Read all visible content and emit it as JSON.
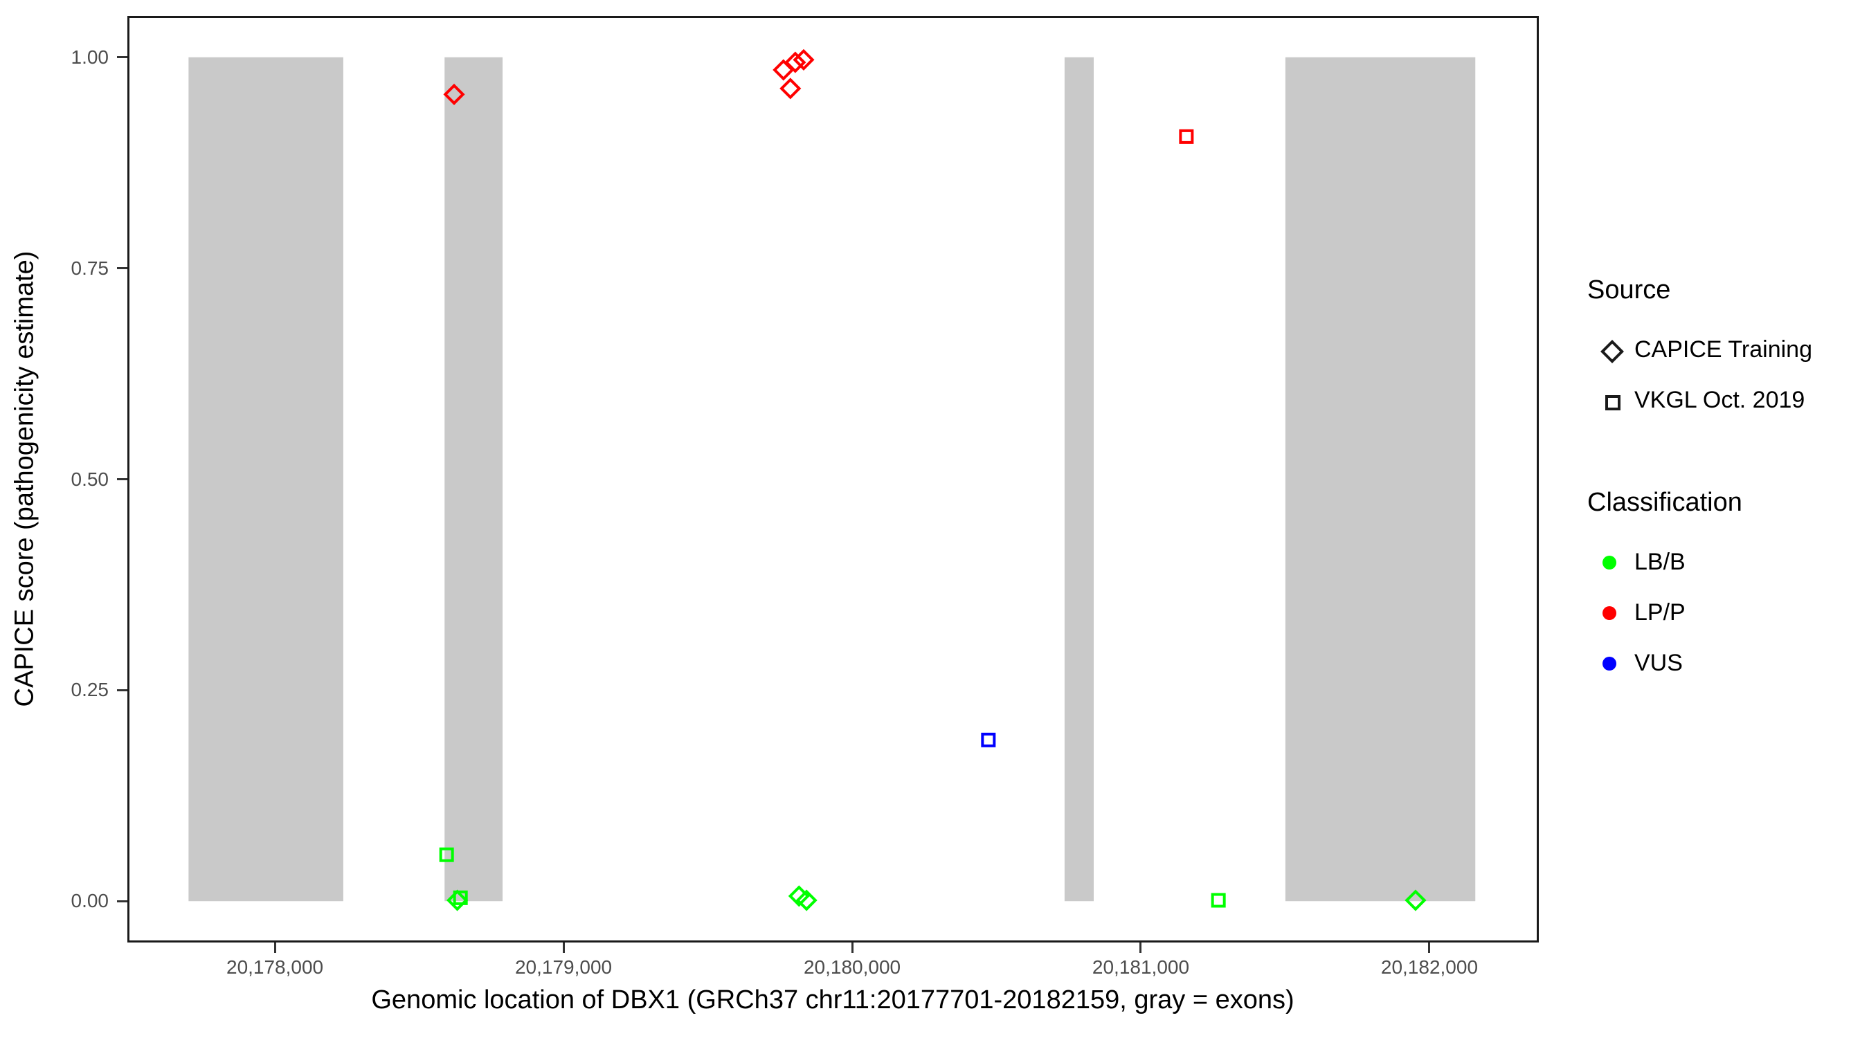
{
  "chart_data": {
    "type": "scatter",
    "title": "",
    "xlabel": "Genomic location of DBX1 (GRCh37 chr11:20177701-20182159, gray = exons)",
    "ylabel": "CAPICE score (pathogenicity estimate)",
    "xlim": [
      20177489,
      20182379
    ],
    "ylim": [
      -0.049,
      1.049
    ],
    "grid": false,
    "legend_position": "right",
    "x_ticks": [
      {
        "value": 20178000,
        "label": "20,178,000"
      },
      {
        "value": 20179000,
        "label": "20,179,000"
      },
      {
        "value": 20180000,
        "label": "20,180,000"
      },
      {
        "value": 20181000,
        "label": "20,181,000"
      },
      {
        "value": 20182000,
        "label": "20,182,000"
      }
    ],
    "y_ticks": [
      {
        "value": 0.0,
        "label": "0.00"
      },
      {
        "value": 0.25,
        "label": "0.25"
      },
      {
        "value": 0.5,
        "label": "0.50"
      },
      {
        "value": 0.75,
        "label": "0.75"
      },
      {
        "value": 1.0,
        "label": "1.00"
      }
    ],
    "exon_color": "#C9C9C9",
    "exons": [
      {
        "start": 20177701,
        "end": 20178237
      },
      {
        "start": 20178588,
        "end": 20178789
      },
      {
        "start": 20180736,
        "end": 20180837
      },
      {
        "start": 20181501,
        "end": 20182159
      }
    ],
    "classification_colors": {
      "LB/B": "#00FF00",
      "LP/P": "#FF0000",
      "VUS": "#0000FF"
    },
    "marker_by_source": {
      "CAPICE Training": "diamond",
      "VKGL Oct. 2019": "square"
    },
    "points": [
      {
        "position": 20178621,
        "score": 0.956,
        "classification": "LP/P",
        "source": "CAPICE Training"
      },
      {
        "position": 20179762,
        "score": 0.985,
        "classification": "LP/P",
        "source": "CAPICE Training"
      },
      {
        "position": 20179786,
        "score": 0.963,
        "classification": "LP/P",
        "source": "CAPICE Training"
      },
      {
        "position": 20179803,
        "score": 0.994,
        "classification": "LP/P",
        "source": "CAPICE Training"
      },
      {
        "position": 20179832,
        "score": 0.997,
        "classification": "LP/P",
        "source": "CAPICE Training"
      },
      {
        "position": 20178632,
        "score": 0.001,
        "classification": "LB/B",
        "source": "CAPICE Training"
      },
      {
        "position": 20179816,
        "score": 0.006,
        "classification": "LB/B",
        "source": "CAPICE Training"
      },
      {
        "position": 20179842,
        "score": 0.001,
        "classification": "LB/B",
        "source": "CAPICE Training"
      },
      {
        "position": 20181952,
        "score": 0.001,
        "classification": "LB/B",
        "source": "CAPICE Training"
      },
      {
        "position": 20178595,
        "score": 0.055,
        "classification": "LB/B",
        "source": "VKGL Oct. 2019"
      },
      {
        "position": 20178643,
        "score": 0.004,
        "classification": "LB/B",
        "source": "VKGL Oct. 2019"
      },
      {
        "position": 20181269,
        "score": 0.001,
        "classification": "LB/B",
        "source": "VKGL Oct. 2019"
      },
      {
        "position": 20181158,
        "score": 0.906,
        "classification": "LP/P",
        "source": "VKGL Oct. 2019"
      },
      {
        "position": 20180472,
        "score": 0.191,
        "classification": "VUS",
        "source": "VKGL Oct. 2019"
      }
    ]
  },
  "legend": {
    "source": {
      "title": "Source",
      "items": [
        {
          "label": "CAPICE Training",
          "marker": "diamond"
        },
        {
          "label": "VKGL Oct. 2019",
          "marker": "square"
        }
      ]
    },
    "classification": {
      "title": "Classification",
      "items": [
        {
          "label": "LB/B",
          "color": "#00FF00"
        },
        {
          "label": "LP/P",
          "color": "#FF0000"
        },
        {
          "label": "VUS",
          "color": "#0000FF"
        }
      ]
    }
  }
}
